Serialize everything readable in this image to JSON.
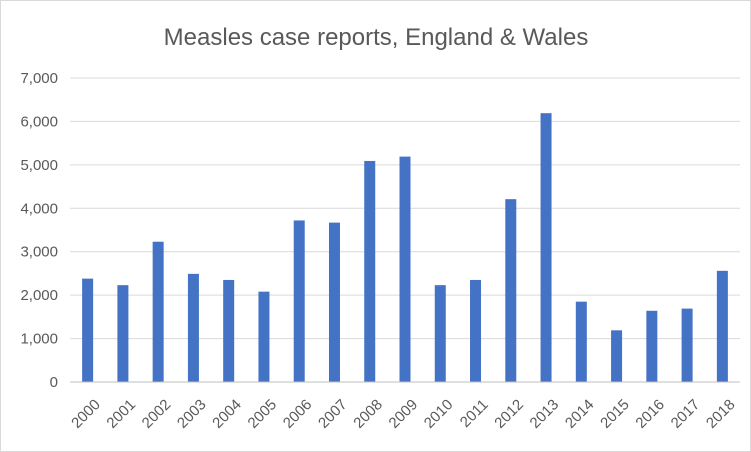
{
  "chart_data": {
    "type": "bar",
    "title": "Measles case reports, England & Wales",
    "xlabel": "",
    "ylabel": "",
    "categories": [
      "2000",
      "2001",
      "2002",
      "2003",
      "2004",
      "2005",
      "2006",
      "2007",
      "2008",
      "2009",
      "2010",
      "2011",
      "2012",
      "2013",
      "2014",
      "2015",
      "2016",
      "2017",
      "2018"
    ],
    "values": [
      2380,
      2230,
      3230,
      2490,
      2350,
      2080,
      3720,
      3670,
      5090,
      5190,
      2230,
      2350,
      4210,
      6190,
      1850,
      1190,
      1640,
      1690,
      2560
    ],
    "ylim": [
      0,
      7000
    ],
    "yticks": [
      0,
      1000,
      2000,
      3000,
      4000,
      5000,
      6000,
      7000
    ],
    "ytick_labels": [
      "0",
      "1,000",
      "2,000",
      "3,000",
      "4,000",
      "5,000",
      "6,000",
      "7,000"
    ],
    "grid": true,
    "legend": "none",
    "bar_color": "#4472c4"
  }
}
